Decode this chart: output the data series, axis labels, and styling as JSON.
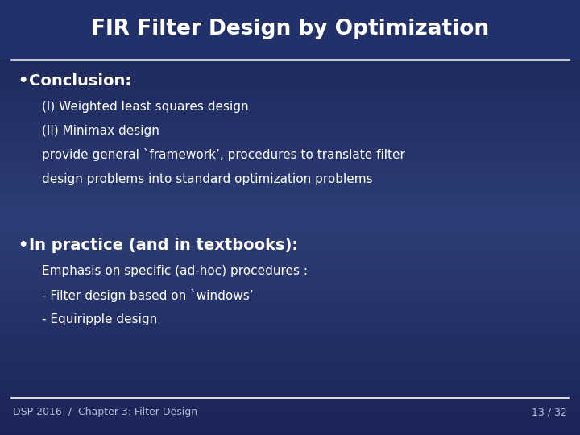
{
  "title": "FIR Filter Design by Optimization",
  "bg_color_dark": "#1a2355",
  "bg_color_mid": "#2d3d75",
  "bg_color_light": "#3a4f8a",
  "title_color": "#FFFFFF",
  "title_fontsize": 20,
  "line_color": "#FFFFFF",
  "text_color": "#FFFFFF",
  "bullet1_bold": "Conclusion:",
  "bullet1_lines": [
    "(I) Weighted least squares design",
    "(II) Minimax design",
    "provide general `framework’, procedures to translate filter",
    "design problems into standard optimization problems"
  ],
  "bullet2_bold": "In practice (and in textbooks):",
  "bullet2_lines": [
    "Emphasis on specific (ad-hoc) procedures :",
    "- Filter design based on `windows’",
    "- Equiripple design"
  ],
  "footer_left": "DSP 2016  /  Chapter-3: Filter Design",
  "footer_right": "13 / 32",
  "footer_color": "#B0C0D8",
  "footer_fontsize": 9,
  "title_fontsize_pt": 19,
  "bullet_header_fontsize": 14,
  "body_fontsize": 11
}
